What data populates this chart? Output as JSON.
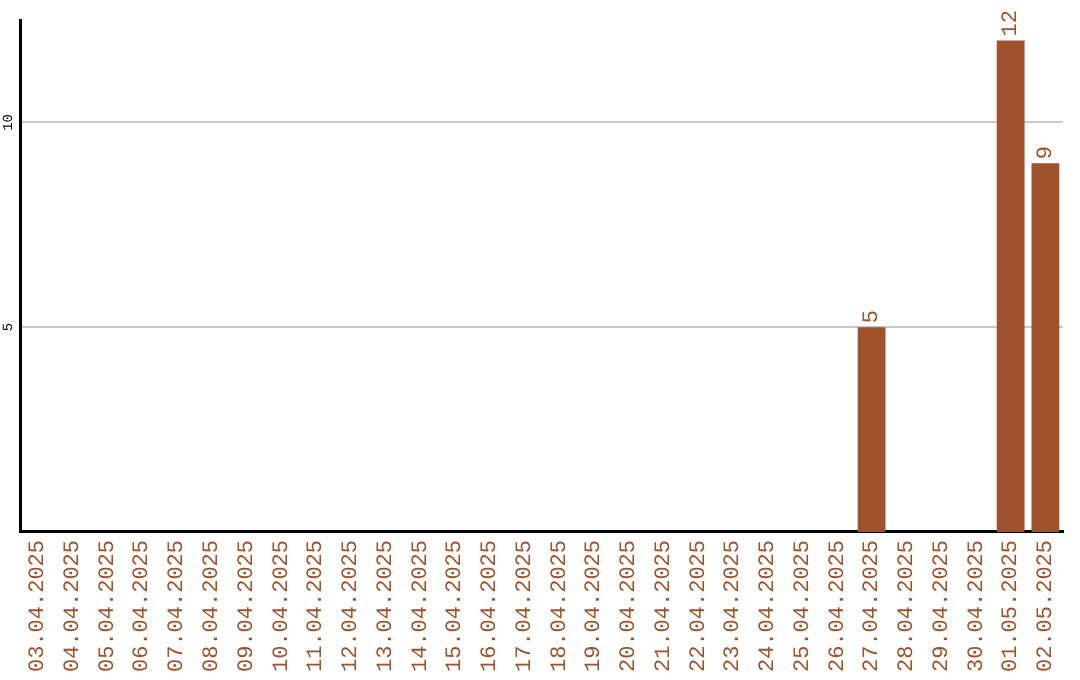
{
  "chart_data": {
    "type": "bar",
    "categories": [
      "03.04.2025",
      "04.04.2025",
      "05.04.2025",
      "06.04.2025",
      "07.04.2025",
      "08.04.2025",
      "09.04.2025",
      "10.04.2025",
      "11.04.2025",
      "12.04.2025",
      "13.04.2025",
      "14.04.2025",
      "15.04.2025",
      "16.04.2025",
      "17.04.2025",
      "18.04.2025",
      "19.04.2025",
      "20.04.2025",
      "21.04.2025",
      "22.04.2025",
      "23.04.2025",
      "24.04.2025",
      "25.04.2025",
      "26.04.2025",
      "27.04.2025",
      "28.04.2025",
      "29.04.2025",
      "30.04.2025",
      "01.05.2025",
      "02.05.2025"
    ],
    "values": [
      0,
      0,
      0,
      0,
      0,
      0,
      0,
      0,
      0,
      0,
      0,
      0,
      0,
      0,
      0,
      0,
      0,
      0,
      0,
      0,
      0,
      0,
      0,
      0,
      5,
      0,
      0,
      0,
      12,
      9
    ],
    "value_labels": [
      null,
      null,
      null,
      null,
      null,
      null,
      null,
      null,
      null,
      null,
      null,
      null,
      null,
      null,
      null,
      null,
      null,
      null,
      null,
      null,
      null,
      null,
      null,
      null,
      "5",
      null,
      null,
      null,
      "12",
      "9"
    ],
    "color": "#a0522d",
    "ylim": [
      0,
      12.5
    ],
    "yticks": [
      5,
      10
    ],
    "grid": "y",
    "legend": false
  }
}
